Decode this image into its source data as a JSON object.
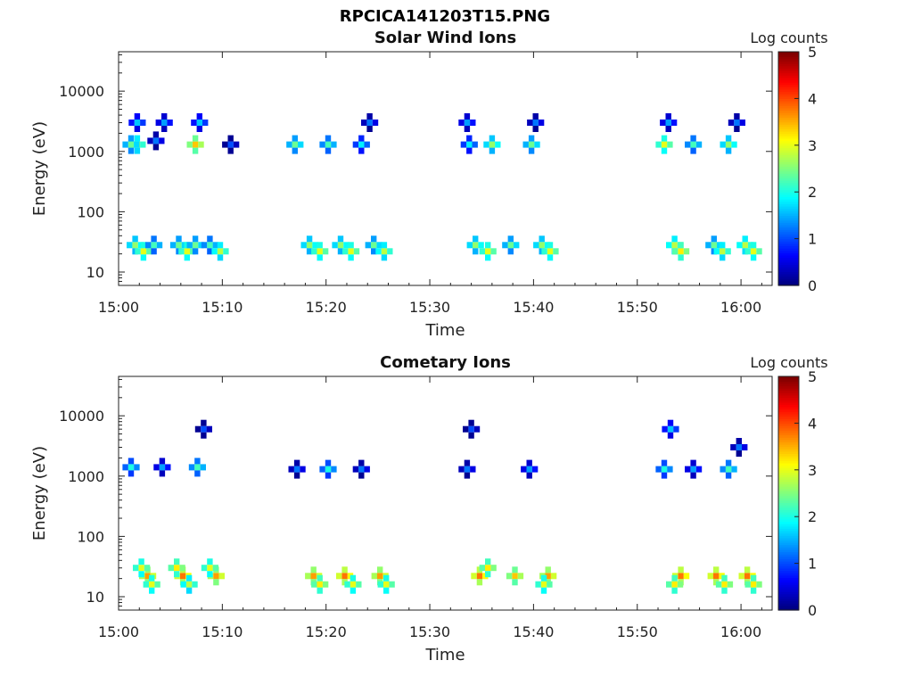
{
  "figure": {
    "title": "RPCICA141203T15.PNG"
  },
  "colormap": {
    "name": "jet",
    "stops": [
      "#00007f",
      "#0000ff",
      "#007fff",
      "#00ffff",
      "#7fff7f",
      "#ffff00",
      "#ff7f00",
      "#ff0000",
      "#7f0000"
    ]
  },
  "chart_data": [
    {
      "type": "heatmap",
      "title": "Solar Wind Ions",
      "xlabel": "Time",
      "ylabel": "Energy (eV)",
      "y_scale": "log",
      "xlim_minutes_after_1500": [
        0,
        63
      ],
      "ylim_eV": [
        6,
        45000
      ],
      "x_ticks": [
        "15:00",
        "15:10",
        "15:20",
        "15:30",
        "15:40",
        "15:50",
        "16:00"
      ],
      "y_ticks": [
        "10",
        "100",
        "1000",
        "10000"
      ],
      "colorbar": {
        "label": "Log counts",
        "range": [
          0,
          5
        ],
        "ticks": [
          "0",
          "1",
          "2",
          "3",
          "4",
          "5"
        ]
      },
      "cells": [
        [
          1.8,
          1300,
          2.8
        ],
        [
          1.2,
          1300,
          2.4
        ],
        [
          1.8,
          3000,
          1.6
        ],
        [
          3.6,
          1500,
          1.2
        ],
        [
          4.4,
          3000,
          1.4
        ],
        [
          7.4,
          1300,
          3.4
        ],
        [
          7.8,
          3000,
          1.6
        ],
        [
          10.8,
          1300,
          1.0
        ],
        [
          17.0,
          1300,
          2.4
        ],
        [
          20.2,
          1300,
          2.2
        ],
        [
          23.4,
          1300,
          1.8
        ],
        [
          24.2,
          3000,
          1.2
        ],
        [
          33.8,
          1300,
          1.8
        ],
        [
          33.6,
          3000,
          1.4
        ],
        [
          36.0,
          1300,
          2.6
        ],
        [
          39.8,
          1300,
          2.4
        ],
        [
          40.2,
          3000,
          1.2
        ],
        [
          52.6,
          1300,
          3.0
        ],
        [
          53.0,
          3000,
          1.4
        ],
        [
          55.4,
          1300,
          2.2
        ],
        [
          58.8,
          1300,
          2.6
        ],
        [
          59.6,
          3000,
          1.2
        ],
        [
          1.6,
          28,
          2.6
        ],
        [
          2.4,
          22,
          3.0
        ],
        [
          3.4,
          28,
          2.2
        ],
        [
          5.8,
          28,
          2.4
        ],
        [
          6.6,
          22,
          3.0
        ],
        [
          7.4,
          28,
          2.4
        ],
        [
          8.8,
          28,
          2.2
        ],
        [
          9.8,
          22,
          2.8
        ],
        [
          18.4,
          28,
          2.6
        ],
        [
          19.4,
          22,
          3.0
        ],
        [
          21.4,
          28,
          2.6
        ],
        [
          22.4,
          22,
          3.0
        ],
        [
          24.6,
          28,
          2.4
        ],
        [
          25.6,
          22,
          2.8
        ],
        [
          34.4,
          28,
          2.6
        ],
        [
          35.6,
          22,
          3.0
        ],
        [
          37.8,
          28,
          2.4
        ],
        [
          40.8,
          28,
          2.6
        ],
        [
          41.6,
          22,
          3.0
        ],
        [
          53.6,
          28,
          2.8
        ],
        [
          54.2,
          22,
          3.2
        ],
        [
          57.4,
          28,
          2.4
        ],
        [
          58.2,
          22,
          2.8
        ],
        [
          60.4,
          28,
          2.8
        ],
        [
          61.2,
          22,
          3.0
        ]
      ]
    },
    {
      "type": "heatmap",
      "title": "Cometary Ions",
      "xlabel": "Time",
      "ylabel": "Energy (eV)",
      "y_scale": "log",
      "xlim_minutes_after_1500": [
        0,
        63
      ],
      "ylim_eV": [
        6,
        45000
      ],
      "x_ticks": [
        "15:00",
        "15:10",
        "15:20",
        "15:30",
        "15:40",
        "15:50",
        "16:00"
      ],
      "y_ticks": [
        "10",
        "100",
        "1000",
        "10000"
      ],
      "colorbar": {
        "label": "Log counts",
        "range": [
          0,
          5
        ],
        "ticks": [
          "0",
          "1",
          "2",
          "3",
          "4",
          "5"
        ]
      },
      "cells": [
        [
          1.2,
          1400,
          2.0
        ],
        [
          4.2,
          1400,
          1.4
        ],
        [
          7.6,
          1400,
          2.2
        ],
        [
          8.2,
          6000,
          1.0
        ],
        [
          17.2,
          1300,
          1.2
        ],
        [
          20.2,
          1300,
          2.0
        ],
        [
          23.4,
          1300,
          1.2
        ],
        [
          33.6,
          1300,
          1.2
        ],
        [
          34.0,
          6000,
          1.0
        ],
        [
          39.6,
          1300,
          1.4
        ],
        [
          52.6,
          1300,
          2.0
        ],
        [
          53.2,
          6000,
          1.6
        ],
        [
          55.4,
          1300,
          1.4
        ],
        [
          58.8,
          1300,
          2.2
        ],
        [
          59.8,
          3000,
          1.2
        ],
        [
          2.8,
          22,
          3.6
        ],
        [
          2.2,
          30,
          3.0
        ],
        [
          3.2,
          16,
          3.0
        ],
        [
          6.2,
          22,
          3.8
        ],
        [
          5.6,
          30,
          3.2
        ],
        [
          6.8,
          16,
          2.8
        ],
        [
          9.4,
          22,
          3.6
        ],
        [
          8.8,
          30,
          3.0
        ],
        [
          18.8,
          22,
          3.6
        ],
        [
          19.4,
          16,
          3.2
        ],
        [
          21.8,
          22,
          3.8
        ],
        [
          22.6,
          16,
          3.0
        ],
        [
          25.2,
          22,
          3.6
        ],
        [
          25.8,
          16,
          3.0
        ],
        [
          34.8,
          22,
          3.8
        ],
        [
          35.6,
          30,
          3.2
        ],
        [
          38.2,
          22,
          3.4
        ],
        [
          41.4,
          22,
          3.6
        ],
        [
          41.0,
          16,
          3.0
        ],
        [
          54.2,
          22,
          3.8
        ],
        [
          53.6,
          16,
          3.2
        ],
        [
          57.6,
          22,
          3.8
        ],
        [
          58.4,
          16,
          3.2
        ],
        [
          60.6,
          22,
          3.8
        ],
        [
          61.2,
          16,
          3.2
        ]
      ]
    }
  ]
}
